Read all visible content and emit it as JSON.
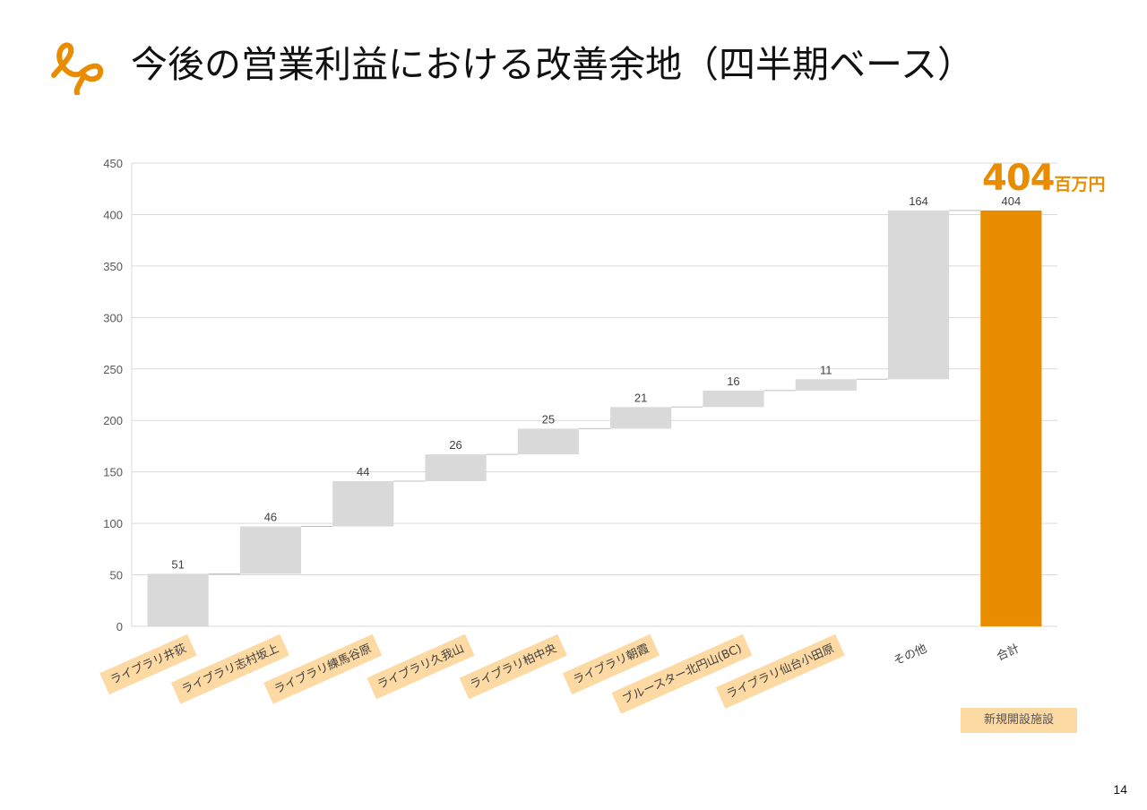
{
  "slide": {
    "title": "今後の営業利益における改善余地（四半期ベース）",
    "page_number": "14",
    "total_callout": {
      "value": "404",
      "unit": "百万円"
    },
    "legend_label": "新規開設施設",
    "colors": {
      "accent": "#ea8c00",
      "increment": "#d9d9d9",
      "highlight": "#fdd9a3",
      "grid": "#d9d9d9"
    },
    "logo_icon": "lp-logo-icon"
  },
  "chart_data": {
    "type": "waterfall",
    "title": "",
    "xlabel": "",
    "ylabel": "",
    "ylim": [
      0,
      450
    ],
    "yticks": [
      0,
      50,
      100,
      150,
      200,
      250,
      300,
      350,
      400,
      450
    ],
    "grid": true,
    "categories": [
      "ライブラリ井荻",
      "ライブラリ志村坂上",
      "ライブラリ練馬谷原",
      "ライブラリ久我山",
      "ライブラリ柏中央",
      "ライブラリ朝霞",
      "ブルースター北円山(BC)",
      "ライブラリ仙台小田原",
      "その他",
      "合計"
    ],
    "values": [
      51,
      46,
      44,
      26,
      25,
      21,
      16,
      11,
      164,
      404
    ],
    "data_labels": [
      "51",
      "46",
      "44",
      "26",
      "25",
      "21",
      "16",
      "11",
      "164",
      "404"
    ],
    "is_total": [
      false,
      false,
      false,
      false,
      false,
      false,
      false,
      false,
      false,
      true
    ],
    "new_facility": [
      true,
      true,
      true,
      true,
      true,
      true,
      true,
      true,
      false,
      false
    ]
  }
}
